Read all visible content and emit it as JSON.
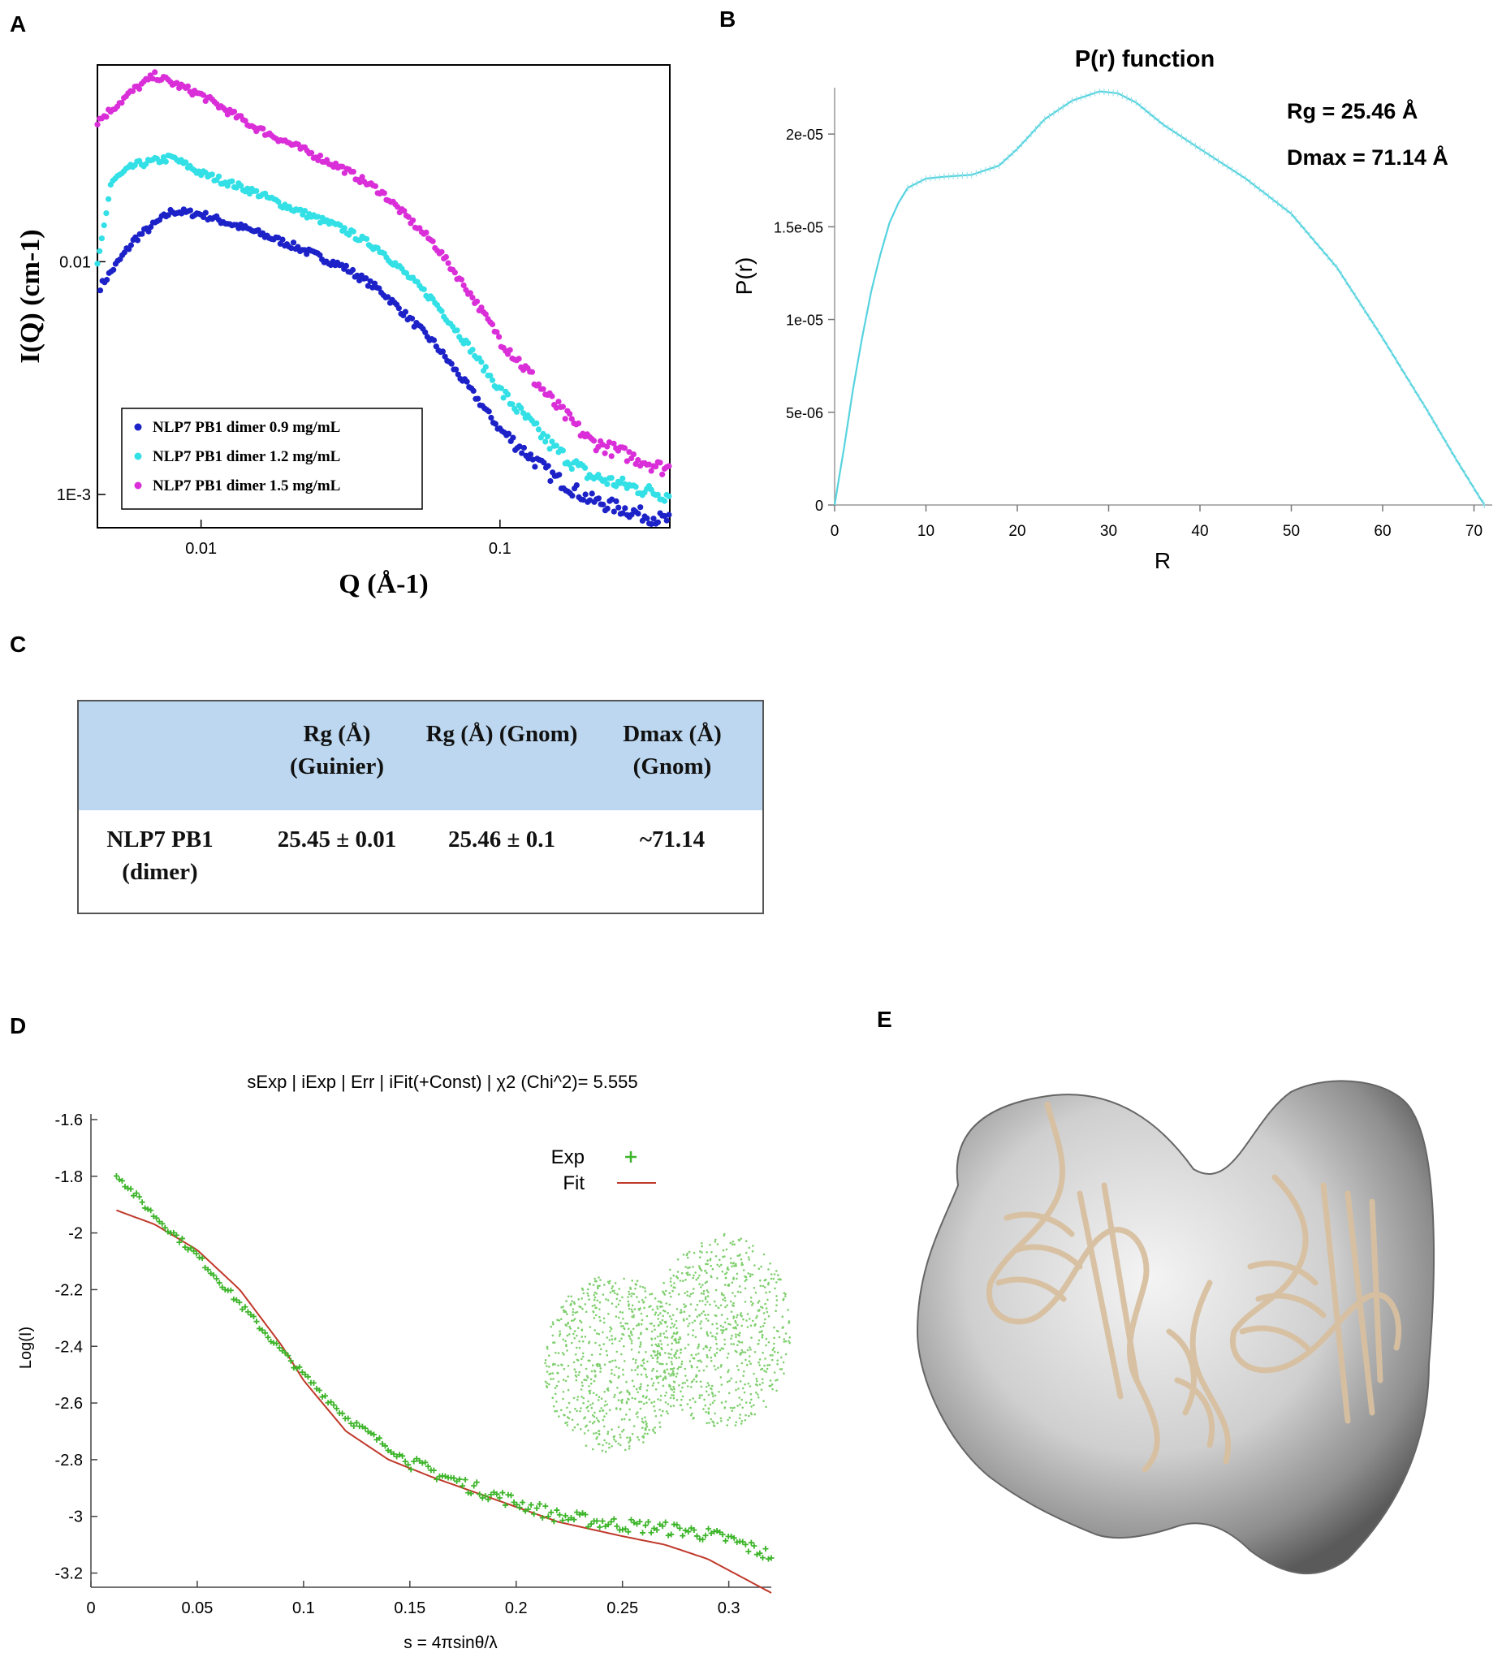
{
  "panels": {
    "a": "A",
    "b": "B",
    "c": "C",
    "d": "D",
    "e": "E"
  },
  "colors": {
    "blue": "#1c22c8",
    "cyan": "#33e0e6",
    "magenta": "#d92ed8",
    "pr_line": "#55d3df",
    "exp_green": "#3db52a",
    "fit_red": "#c0392b",
    "table_header": "#bcd7ef"
  },
  "chart_data": [
    {
      "id": "A",
      "type": "scatter",
      "xlabel": "Q (Å-1)",
      "ylabel": "I(Q) (cm-1)",
      "xscale": "log",
      "yscale": "log",
      "xlim": [
        0.0045,
        0.37
      ],
      "ylim": [
        0.00072,
        0.07
      ],
      "xticks": [
        {
          "v": 0.01,
          "label": "0.01"
        },
        {
          "v": 0.1,
          "label": "0.1"
        }
      ],
      "yticks": [
        {
          "v": 0.01,
          "label": "0.01"
        },
        {
          "v": 0.001,
          "label": "1E-3"
        }
      ],
      "legend_position": "bottom-left",
      "series": [
        {
          "name": "NLP7 PB1 dimer 0.9 mg/mL",
          "x_start": 0.0046,
          "anchors": [
            [
              0.0046,
              0.0078
            ],
            [
              0.006,
              0.0125
            ],
            [
              0.008,
              0.0165
            ],
            [
              0.01,
              0.016
            ],
            [
              0.015,
              0.0135
            ],
            [
              0.02,
              0.0118
            ],
            [
              0.03,
              0.0095
            ],
            [
              0.04,
              0.0075
            ],
            [
              0.06,
              0.0045
            ],
            [
              0.08,
              0.0028
            ],
            [
              0.1,
              0.0019
            ],
            [
              0.15,
              0.0012
            ],
            [
              0.2,
              0.00095
            ],
            [
              0.3,
              0.00082
            ],
            [
              0.35,
              0.00078
            ]
          ]
        },
        {
          "name": "NLP7 PB1 dimer 1.2 mg/mL",
          "x_start": 0.0045,
          "anchors": [
            [
              0.0045,
              0.0095
            ],
            [
              0.005,
              0.022
            ],
            [
              0.006,
              0.026
            ],
            [
              0.008,
              0.028
            ],
            [
              0.01,
              0.024
            ],
            [
              0.015,
              0.02
            ],
            [
              0.02,
              0.017
            ],
            [
              0.03,
              0.0138
            ],
            [
              0.04,
              0.0112
            ],
            [
              0.06,
              0.0068
            ],
            [
              0.08,
              0.0042
            ],
            [
              0.1,
              0.0028
            ],
            [
              0.15,
              0.0016
            ],
            [
              0.2,
              0.0012
            ],
            [
              0.3,
              0.00105
            ],
            [
              0.35,
              0.001
            ]
          ]
        },
        {
          "name": "NLP7 PB1 dimer 1.5 mg/mL",
          "x_start": 0.0045,
          "anchors": [
            [
              0.0045,
              0.04
            ],
            [
              0.006,
              0.055
            ],
            [
              0.007,
              0.063
            ],
            [
              0.01,
              0.052
            ],
            [
              0.015,
              0.038
            ],
            [
              0.02,
              0.032
            ],
            [
              0.03,
              0.025
            ],
            [
              0.04,
              0.02
            ],
            [
              0.06,
              0.012
            ],
            [
              0.08,
              0.0072
            ],
            [
              0.1,
              0.0047
            ],
            [
              0.15,
              0.0025
            ],
            [
              0.2,
              0.0017
            ],
            [
              0.3,
              0.0014
            ],
            [
              0.35,
              0.0013
            ]
          ]
        }
      ]
    },
    {
      "id": "B",
      "type": "line",
      "title": "P(r) function",
      "xlabel": "R",
      "ylabel": "P(r)",
      "xlim": [
        0,
        72
      ],
      "ylim": [
        0,
        2.25e-05
      ],
      "xticks": [
        0,
        10,
        20,
        30,
        40,
        50,
        60,
        70
      ],
      "yticks": [
        {
          "v": 0,
          "label": "0"
        },
        {
          "v": 5e-06,
          "label": "5e-06"
        },
        {
          "v": 1e-05,
          "label": "1e-05"
        },
        {
          "v": 1.5e-05,
          "label": "1.5e-05"
        },
        {
          "v": 2e-05,
          "label": "2e-05"
        }
      ],
      "annotations": [
        "Rg = 25.46 Å",
        "Dmax = 71.14 Å"
      ],
      "points": [
        [
          0,
          0
        ],
        [
          1,
          3e-06
        ],
        [
          2,
          6.2e-06
        ],
        [
          3,
          9e-06
        ],
        [
          4,
          1.15e-05
        ],
        [
          5,
          1.35e-05
        ],
        [
          6,
          1.52e-05
        ],
        [
          7,
          1.63e-05
        ],
        [
          8,
          1.71e-05
        ],
        [
          10,
          1.76e-05
        ],
        [
          12,
          1.77e-05
        ],
        [
          15,
          1.78e-05
        ],
        [
          18,
          1.83e-05
        ],
        [
          20,
          1.92e-05
        ],
        [
          23,
          2.08e-05
        ],
        [
          26,
          2.18e-05
        ],
        [
          29,
          2.23e-05
        ],
        [
          31,
          2.22e-05
        ],
        [
          33,
          2.17e-05
        ],
        [
          36,
          2.05e-05
        ],
        [
          40,
          1.92e-05
        ],
        [
          45,
          1.76e-05
        ],
        [
          50,
          1.57e-05
        ],
        [
          55,
          1.28e-05
        ],
        [
          60,
          9e-06
        ],
        [
          65,
          5e-06
        ],
        [
          68,
          2.5e-06
        ],
        [
          70,
          9e-07
        ],
        [
          71.14,
          0
        ]
      ]
    },
    {
      "id": "C",
      "type": "table",
      "columns": [
        "",
        "Rg (Å) (Guinier)",
        "Rg (Å) (Gnom)",
        "Dmax (Å) (Gnom)"
      ],
      "rows": [
        [
          "NLP7 PB1 (dimer)",
          "25.45 ± 0.01",
          "25.46 ± 0.1",
          "~71.14"
        ]
      ]
    },
    {
      "id": "D",
      "type": "scatter",
      "title": "sExp | iExp | Err | iFit(+Const) | χ2 (Chi^2)= 5.555",
      "xlabel": "s = 4πsinθ/λ",
      "ylabel": "Log(I)",
      "xlim": [
        0,
        0.32
      ],
      "ylim": [
        -3.25,
        -1.58
      ],
      "xticks": [
        0,
        0.05,
        0.1,
        0.15,
        0.2,
        0.25,
        0.3
      ],
      "yticks": [
        -1.6,
        -1.8,
        -2,
        -2.2,
        -2.4,
        -2.6,
        -2.8,
        -3,
        -3.2
      ],
      "series": [
        {
          "name": "Exp",
          "x_range": [
            0.012,
            0.32
          ],
          "count": 230,
          "anchors": [
            [
              0.012,
              -1.79
            ],
            [
              0.02,
              -1.86
            ],
            [
              0.03,
              -1.94
            ],
            [
              0.05,
              -2.08
            ],
            [
              0.07,
              -2.25
            ],
            [
              0.09,
              -2.42
            ],
            [
              0.1,
              -2.5
            ],
            [
              0.12,
              -2.65
            ],
            [
              0.15,
              -2.81
            ],
            [
              0.18,
              -2.9
            ],
            [
              0.2,
              -2.95
            ],
            [
              0.22,
              -3.0
            ],
            [
              0.25,
              -3.03
            ],
            [
              0.28,
              -3.05
            ],
            [
              0.3,
              -3.08
            ],
            [
              0.32,
              -3.14
            ]
          ]
        },
        {
          "name": "Fit",
          "anchors": [
            [
              0.012,
              -1.92
            ],
            [
              0.03,
              -1.97
            ],
            [
              0.05,
              -2.06
            ],
            [
              0.07,
              -2.2
            ],
            [
              0.09,
              -2.4
            ],
            [
              0.1,
              -2.52
            ],
            [
              0.12,
              -2.7
            ],
            [
              0.14,
              -2.8
            ],
            [
              0.16,
              -2.86
            ],
            [
              0.19,
              -2.94
            ],
            [
              0.22,
              -3.02
            ],
            [
              0.25,
              -3.07
            ],
            [
              0.27,
              -3.1
            ],
            [
              0.29,
              -3.15
            ],
            [
              0.3,
              -3.19
            ],
            [
              0.32,
              -3.27
            ]
          ]
        }
      ]
    }
  ]
}
